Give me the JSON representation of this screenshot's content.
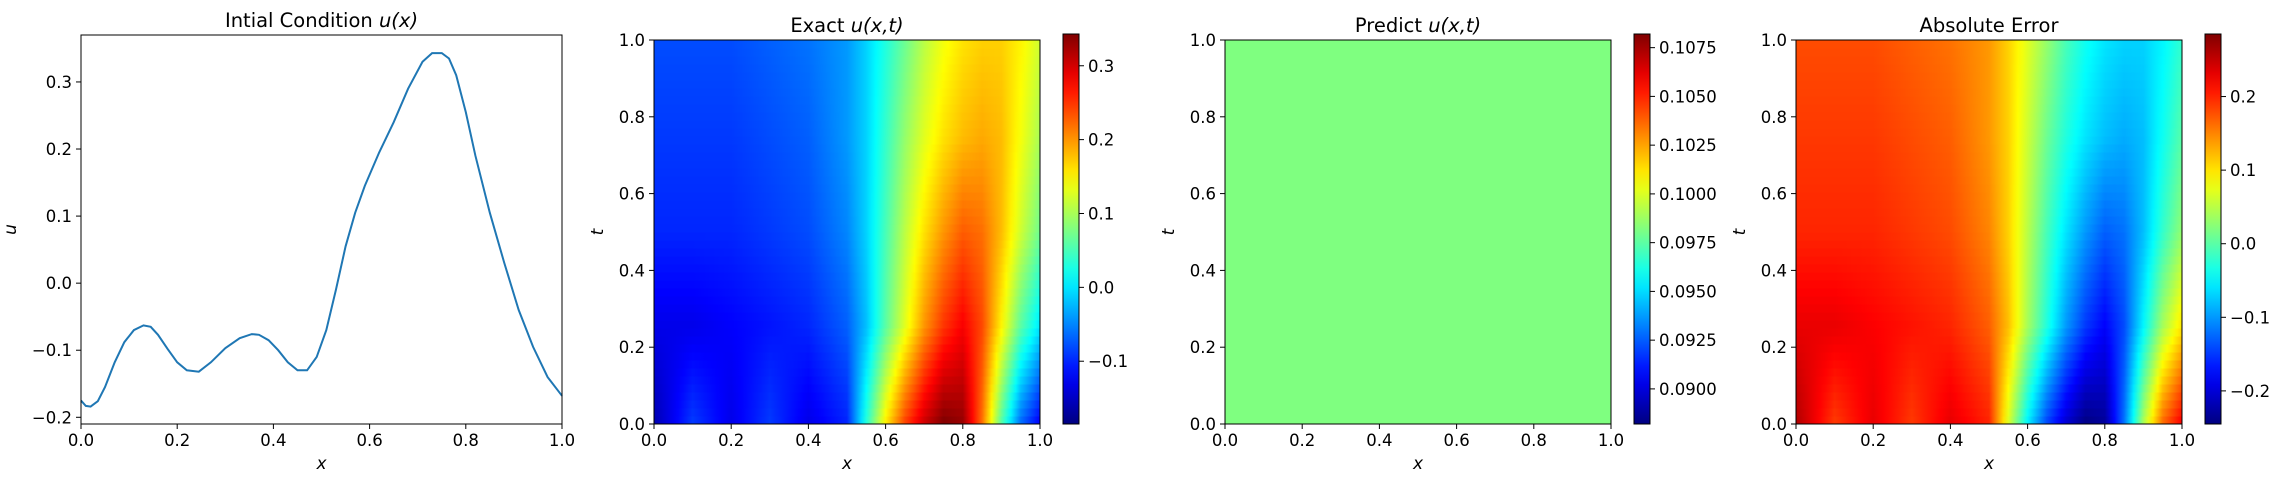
{
  "chart_data": [
    {
      "type": "line",
      "title": "Intial Condition u(x)",
      "title_main": "Intial Condition ",
      "title_math": "u(x)",
      "xlabel": "x",
      "ylabel": "u",
      "xlim": [
        0,
        1
      ],
      "ylim": [
        -0.21,
        0.37
      ],
      "xticks": [
        "0.0",
        "0.2",
        "0.4",
        "0.6",
        "0.8",
        "1.0"
      ],
      "yticks": [
        "−0.2",
        "−0.1",
        "0.0",
        "0.1",
        "0.2",
        "0.3"
      ],
      "line_color": "#1f77b4",
      "series": [
        {
          "x": [
            0.0,
            0.01,
            0.02,
            0.035,
            0.05,
            0.07,
            0.09,
            0.11,
            0.13,
            0.145,
            0.16,
            0.18,
            0.2,
            0.22,
            0.245,
            0.27,
            0.3,
            0.33,
            0.355,
            0.37,
            0.39,
            0.41,
            0.43,
            0.45,
            0.47,
            0.49,
            0.51,
            0.53,
            0.55,
            0.57,
            0.59,
            0.62,
            0.65,
            0.68,
            0.71,
            0.73,
            0.75,
            0.765,
            0.78,
            0.8,
            0.82,
            0.85,
            0.88,
            0.91,
            0.94,
            0.97,
            1.0
          ],
          "y": [
            -0.175,
            -0.183,
            -0.184,
            -0.176,
            -0.155,
            -0.118,
            -0.088,
            -0.07,
            -0.063,
            -0.065,
            -0.077,
            -0.098,
            -0.118,
            -0.13,
            -0.132,
            -0.118,
            -0.097,
            -0.082,
            -0.076,
            -0.077,
            -0.085,
            -0.1,
            -0.118,
            -0.13,
            -0.13,
            -0.11,
            -0.07,
            -0.01,
            0.055,
            0.105,
            0.145,
            0.195,
            0.24,
            0.29,
            0.33,
            0.343,
            0.343,
            0.335,
            0.31,
            0.255,
            0.19,
            0.105,
            0.03,
            -0.04,
            -0.095,
            -0.14,
            -0.168
          ]
        }
      ]
    },
    {
      "type": "heatmap",
      "title": "Exact u(x,t)",
      "title_main": "Exact ",
      "title_math": "u(x,t)",
      "xlabel": "x",
      "ylabel": "t",
      "xlim": [
        0,
        1
      ],
      "ylim": [
        0,
        1
      ],
      "xticks": [
        "0.0",
        "0.2",
        "0.4",
        "0.6",
        "0.8",
        "1.0"
      ],
      "yticks": [
        "0.0",
        "0.2",
        "0.4",
        "0.6",
        "0.8",
        "1.0"
      ],
      "colormap": "jet",
      "colorbar_range": [
        -0.185,
        0.343
      ],
      "colorbar_ticks": [
        {
          "value": -0.1,
          "label": "−0.1"
        },
        {
          "value": 0.0,
          "label": "0.0"
        },
        {
          "value": 0.1,
          "label": "0.1"
        },
        {
          "value": 0.2,
          "label": "0.2"
        },
        {
          "value": 0.3,
          "label": "0.3"
        }
      ],
      "x": [
        0.0,
        0.1,
        0.2,
        0.3,
        0.4,
        0.5,
        0.55,
        0.6,
        0.65,
        0.7,
        0.75,
        0.8,
        0.85,
        0.9,
        0.95,
        1.0
      ],
      "t": [
        0.0,
        0.25,
        0.5,
        0.75,
        1.0
      ],
      "z": [
        [
          -0.16,
          -0.09,
          -0.13,
          -0.09,
          -0.13,
          -0.1,
          0.03,
          0.15,
          0.24,
          0.3,
          0.34,
          0.33,
          0.22,
          0.06,
          -0.06,
          -0.12
        ],
        [
          -0.13,
          -0.13,
          -0.12,
          -0.11,
          -0.1,
          -0.07,
          -0.02,
          0.06,
          0.13,
          0.2,
          0.25,
          0.28,
          0.24,
          0.15,
          0.06,
          0.0
        ],
        [
          -0.1,
          -0.1,
          -0.1,
          -0.09,
          -0.08,
          -0.05,
          -0.01,
          0.05,
          0.11,
          0.16,
          0.2,
          0.23,
          0.22,
          0.18,
          0.12,
          0.07
        ],
        [
          -0.09,
          -0.09,
          -0.09,
          -0.08,
          -0.07,
          -0.04,
          -0.01,
          0.04,
          0.09,
          0.13,
          0.16,
          0.18,
          0.19,
          0.18,
          0.14,
          0.1
        ],
        [
          -0.08,
          -0.08,
          -0.08,
          -0.07,
          -0.06,
          -0.04,
          -0.01,
          0.03,
          0.07,
          0.11,
          0.14,
          0.16,
          0.17,
          0.17,
          0.15,
          0.12
        ]
      ]
    },
    {
      "type": "heatmap",
      "title": "Predict u(x,t)",
      "title_main": "Predict ",
      "title_math": "u(x,t)",
      "xlabel": "x",
      "ylabel": "t",
      "xlim": [
        0,
        1
      ],
      "ylim": [
        0,
        1
      ],
      "xticks": [
        "0.0",
        "0.2",
        "0.4",
        "0.6",
        "0.8",
        "1.0"
      ],
      "yticks": [
        "0.0",
        "0.2",
        "0.4",
        "0.6",
        "0.8",
        "1.0"
      ],
      "colormap": "jet",
      "colorbar_range": [
        0.0882,
        0.1082
      ],
      "colorbar_ticks": [
        {
          "value": 0.09,
          "label": "0.0900"
        },
        {
          "value": 0.0925,
          "label": "0.0925"
        },
        {
          "value": 0.095,
          "label": "0.0950"
        },
        {
          "value": 0.0975,
          "label": "0.0975"
        },
        {
          "value": 0.1,
          "label": "0.1000"
        },
        {
          "value": 0.1025,
          "label": "0.1025"
        },
        {
          "value": 0.105,
          "label": "0.1050"
        },
        {
          "value": 0.1075,
          "label": "0.1075"
        }
      ],
      "x": [
        0.0,
        1.0
      ],
      "t": [
        0.0,
        1.0
      ],
      "z": [
        [
          0.0982,
          0.0982
        ],
        [
          0.0982,
          0.0982
        ]
      ]
    },
    {
      "type": "heatmap",
      "title": "Absolute Error",
      "title_main": "Absolute Error",
      "title_math": "",
      "xlabel": "x",
      "ylabel": "t",
      "xlim": [
        0,
        1
      ],
      "ylim": [
        0,
        1
      ],
      "xticks": [
        "0.0",
        "0.2",
        "0.4",
        "0.6",
        "0.8",
        "1.0"
      ],
      "yticks": [
        "0.0",
        "0.2",
        "0.4",
        "0.6",
        "0.8",
        "1.0"
      ],
      "colormap": "jet",
      "colorbar_range": [
        -0.245,
        0.285
      ],
      "colorbar_ticks": [
        {
          "value": -0.2,
          "label": "−0.2"
        },
        {
          "value": -0.1,
          "label": "−0.1"
        },
        {
          "value": 0.0,
          "label": "0.0"
        },
        {
          "value": 0.1,
          "label": "0.1"
        },
        {
          "value": 0.2,
          "label": "0.2"
        }
      ],
      "x": [
        0.0,
        0.1,
        0.2,
        0.3,
        0.4,
        0.5,
        0.55,
        0.6,
        0.65,
        0.7,
        0.75,
        0.8,
        0.85,
        0.9,
        0.95,
        1.0
      ],
      "t": [
        0.0,
        0.25,
        0.5,
        0.75,
        1.0
      ],
      "z": [
        [
          0.26,
          0.19,
          0.23,
          0.19,
          0.23,
          0.2,
          0.07,
          -0.05,
          -0.14,
          -0.2,
          -0.24,
          -0.23,
          -0.12,
          0.04,
          0.16,
          0.22
        ],
        [
          0.23,
          0.23,
          0.22,
          0.21,
          0.2,
          0.17,
          0.12,
          0.04,
          -0.03,
          -0.1,
          -0.15,
          -0.18,
          -0.14,
          -0.05,
          0.04,
          0.1
        ],
        [
          0.2,
          0.2,
          0.2,
          0.19,
          0.18,
          0.15,
          0.11,
          0.05,
          -0.01,
          -0.06,
          -0.1,
          -0.13,
          -0.12,
          -0.08,
          -0.02,
          0.03
        ],
        [
          0.19,
          0.19,
          0.19,
          0.18,
          0.17,
          0.14,
          0.11,
          0.06,
          0.01,
          -0.03,
          -0.06,
          -0.08,
          -0.09,
          -0.08,
          -0.04,
          0.0
        ],
        [
          0.18,
          0.18,
          0.18,
          0.17,
          0.16,
          0.14,
          0.11,
          0.07,
          0.03,
          -0.01,
          -0.04,
          -0.06,
          -0.07,
          -0.07,
          -0.05,
          -0.02
        ]
      ]
    }
  ]
}
